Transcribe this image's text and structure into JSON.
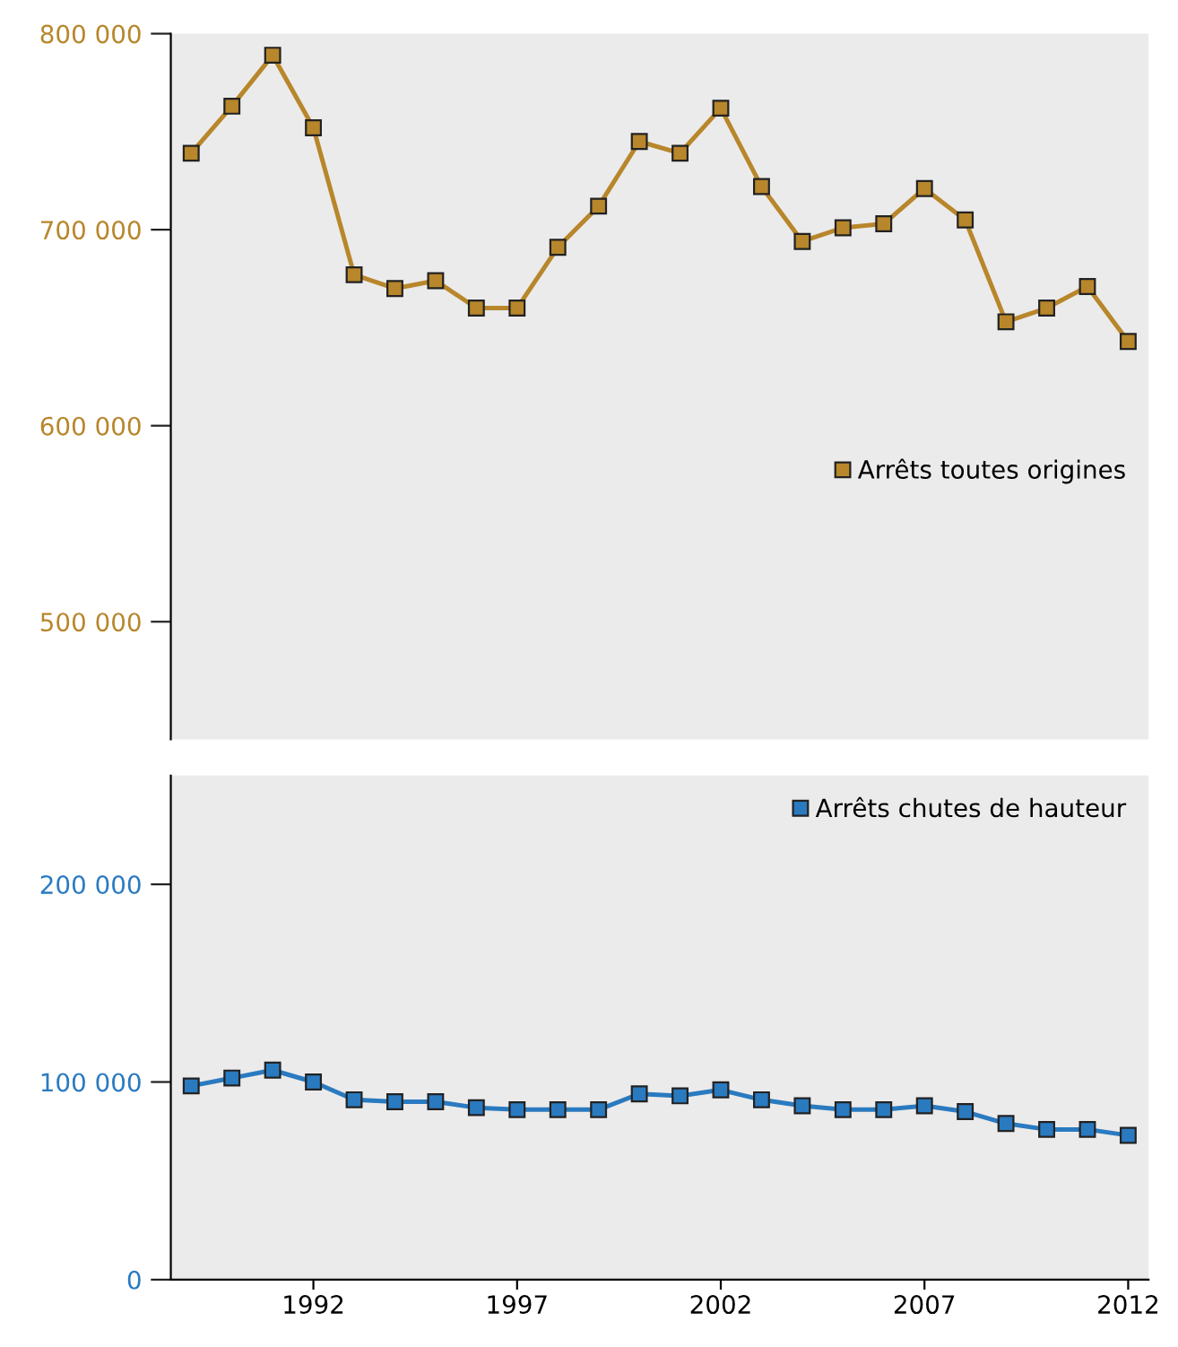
{
  "chart_data": [
    {
      "type": "line",
      "x": [
        1989,
        1990,
        1991,
        1992,
        1993,
        1994,
        1995,
        1996,
        1997,
        1998,
        1999,
        2000,
        2001,
        2002,
        2003,
        2004,
        2005,
        2006,
        2007,
        2008,
        2009,
        2010,
        2011,
        2012
      ],
      "series": [
        {
          "name": "Arrêts toutes origines",
          "color": "#b8862b",
          "values": [
            739000,
            763000,
            789000,
            752000,
            677000,
            670000,
            674000,
            660000,
            660000,
            691000,
            712000,
            745000,
            739000,
            762000,
            722000,
            694000,
            701000,
            703000,
            721000,
            705000,
            653000,
            660000,
            671000,
            643000
          ]
        }
      ],
      "xlim": [
        1988.5,
        2012.5
      ],
      "ylim": [
        440000,
        800000
      ],
      "yticks": [
        {
          "value": 500000,
          "label": "500 000"
        },
        {
          "value": 600000,
          "label": "600 000"
        },
        {
          "value": 700000,
          "label": "700 000"
        },
        {
          "value": 800000,
          "label": "800 000"
        }
      ],
      "tick_labels": "y",
      "marker": "square",
      "legend": "right",
      "grid": false
    },
    {
      "type": "line",
      "x": [
        1989,
        1990,
        1991,
        1992,
        1993,
        1994,
        1995,
        1996,
        1997,
        1998,
        1999,
        2000,
        2001,
        2002,
        2003,
        2004,
        2005,
        2006,
        2007,
        2008,
        2009,
        2010,
        2011,
        2012
      ],
      "series": [
        {
          "name": "Arrêts chutes de hauteur",
          "color": "#2a7ac0",
          "values": [
            98000,
            102000,
            106000,
            100000,
            91000,
            90000,
            90000,
            87000,
            86000,
            86000,
            86000,
            94000,
            93000,
            96000,
            91000,
            88000,
            86000,
            86000,
            88000,
            85000,
            79000,
            76000,
            76000,
            73000
          ]
        }
      ],
      "xlim": [
        1988.5,
        2012.5
      ],
      "ylim": [
        0,
        255000
      ],
      "yticks": [
        0,
        {
          "value": 100000,
          "label": "100 000"
        },
        {
          "value": 200000,
          "label": "200 000"
        }
      ],
      "xticks": [
        1992,
        1997,
        2002,
        2007,
        2012
      ],
      "marker": "square",
      "legend": "top right",
      "grid": false
    }
  ]
}
